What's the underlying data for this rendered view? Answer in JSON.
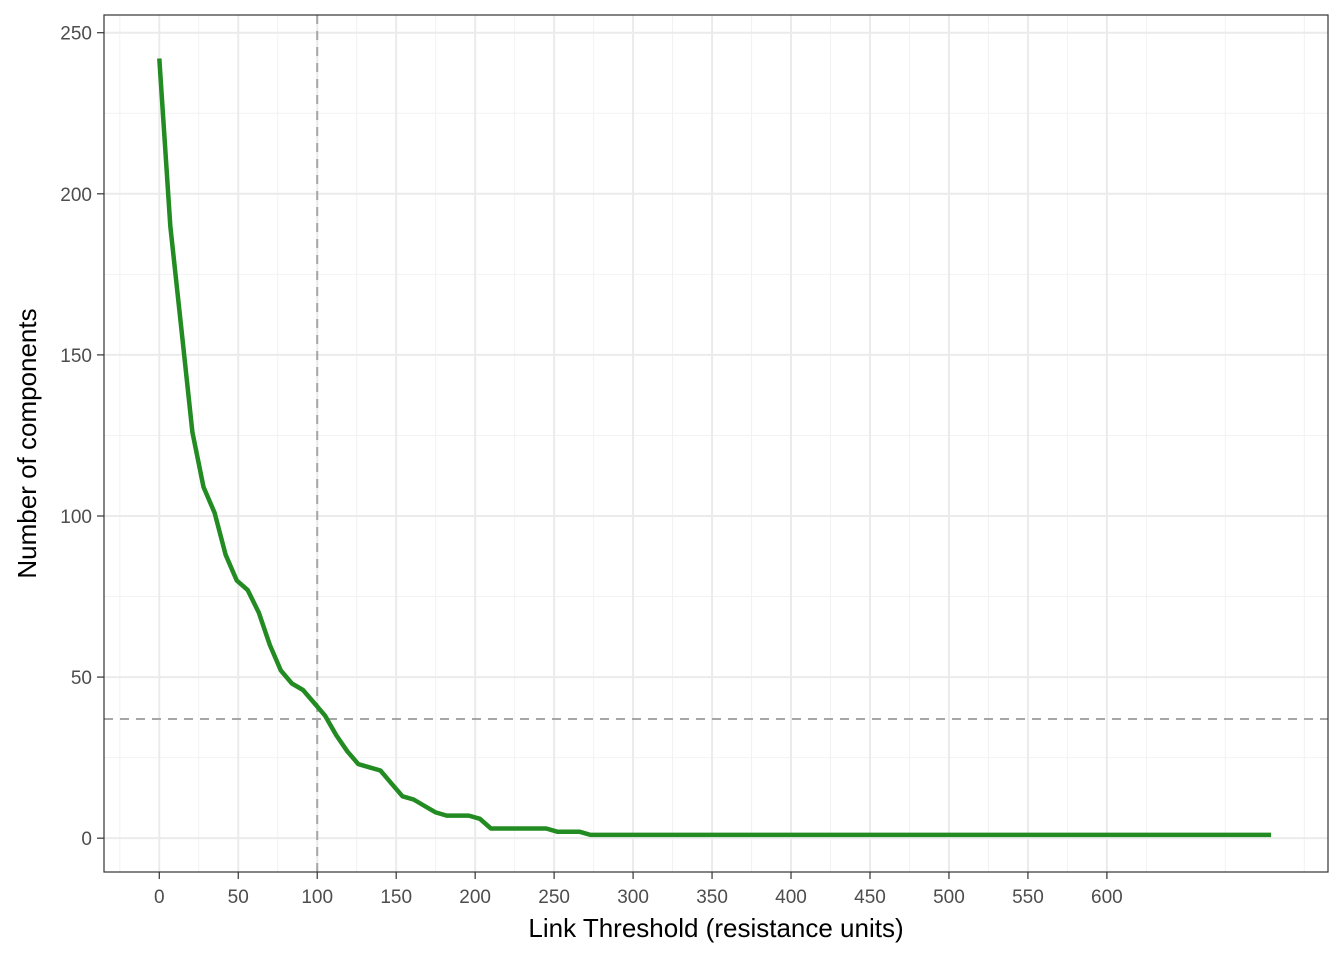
{
  "chart_data": {
    "type": "line",
    "title": "",
    "xlabel": "Link Threshold (resistance units)",
    "ylabel": "Number of components",
    "xlim": [
      -35,
      740
    ],
    "ylim": [
      -10.5,
      255.5
    ],
    "x_ticks": [
      0,
      50,
      100,
      150,
      200,
      250,
      300,
      350,
      400,
      450,
      500,
      550,
      600
    ],
    "y_ticks": [
      0,
      50,
      100,
      150,
      200,
      250
    ],
    "grid": true,
    "legend": "none",
    "series": [
      {
        "color": "#228B22",
        "x": [
          0,
          7,
          14,
          21,
          28,
          35,
          42,
          49,
          56,
          63,
          70,
          77,
          84,
          91,
          98,
          105,
          112,
          119,
          126,
          133,
          140,
          147,
          154,
          161,
          168,
          175,
          182,
          189,
          196,
          203,
          210,
          217,
          224,
          231,
          238,
          245,
          252,
          259,
          266,
          273,
          280,
          300,
          350,
          400,
          450,
          500,
          550,
          600,
          650,
          704
        ],
        "y": [
          242,
          190,
          158,
          126,
          109,
          101,
          88,
          80,
          77,
          70,
          60,
          52,
          48,
          46,
          42,
          38,
          32,
          27,
          23,
          22,
          21,
          17,
          13,
          12,
          10,
          8,
          7,
          7,
          7,
          6,
          3,
          3,
          3,
          3,
          3,
          3,
          2,
          2,
          2,
          1,
          1,
          1,
          1,
          1,
          1,
          1,
          1,
          1,
          1,
          1
        ]
      }
    ],
    "reference_lines": [
      {
        "orientation": "vertical",
        "value": 100,
        "style": "dashed",
        "color": "#a6a6a6"
      },
      {
        "orientation": "horizontal",
        "value": 37,
        "style": "dashed",
        "color": "#a6a6a6"
      }
    ]
  }
}
